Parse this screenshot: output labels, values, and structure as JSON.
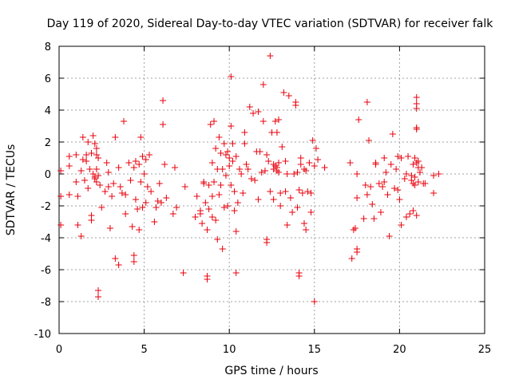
{
  "chart_data": {
    "type": "scatter",
    "title": "Day 119 of 2020, Sidereal Day-to-day VTEC variation (SDTVAR) for receiver falk",
    "xlabel": "GPS time / hours",
    "ylabel": "SDTVAR / TECUs",
    "xlim": [
      0,
      25
    ],
    "ylim": [
      -10,
      8
    ],
    "x_ticks": [
      0,
      5,
      10,
      15,
      20,
      25
    ],
    "y_ticks": [
      -10,
      -8,
      -6,
      -4,
      -2,
      0,
      2,
      4,
      6,
      8
    ],
    "x_tick_labels": [
      "0",
      "5",
      "10",
      "15",
      "20",
      "25"
    ],
    "y_tick_labels": [
      "-10",
      "-8",
      "-6",
      "-4",
      "-2",
      "0",
      "2",
      "4",
      "6",
      "8"
    ],
    "grid": true,
    "marker": "+",
    "marker_color": "#e8000b",
    "series": [
      {
        "name": "SDTVAR",
        "points": [
          [
            0.1,
            0.2
          ],
          [
            0.1,
            -1.4
          ],
          [
            0.1,
            -3.2
          ],
          [
            0.6,
            0.5
          ],
          [
            0.6,
            -1.3
          ],
          [
            0.6,
            1.1
          ],
          [
            1.0,
            1.2
          ],
          [
            1.0,
            -0.5
          ],
          [
            1.1,
            -3.2
          ],
          [
            1.1,
            -1.4
          ],
          [
            1.3,
            0.2
          ],
          [
            1.3,
            -3.9
          ],
          [
            1.4,
            2.3
          ],
          [
            1.4,
            0.9
          ],
          [
            1.5,
            -0.4
          ],
          [
            1.6,
            0.8
          ],
          [
            1.6,
            1.2
          ],
          [
            1.7,
            2.0
          ],
          [
            1.7,
            -0.9
          ],
          [
            1.8,
            0.3
          ],
          [
            1.9,
            1.3
          ],
          [
            1.9,
            -2.6
          ],
          [
            1.9,
            -2.9
          ],
          [
            2.0,
            2.4
          ],
          [
            2.0,
            0.0
          ],
          [
            2.1,
            1.9
          ],
          [
            2.1,
            -0.2
          ],
          [
            2.1,
            -0.3
          ],
          [
            2.2,
            1.6
          ],
          [
            2.2,
            1.2
          ],
          [
            2.2,
            -0.5
          ],
          [
            2.2,
            0.3
          ],
          [
            2.3,
            -7.3
          ],
          [
            2.3,
            -7.7
          ],
          [
            2.3,
            1.0
          ],
          [
            2.3,
            -0.1
          ],
          [
            2.4,
            -0.7
          ],
          [
            2.5,
            -2.1
          ],
          [
            2.7,
            -1.1
          ],
          [
            2.8,
            0.7
          ],
          [
            2.9,
            0.1
          ],
          [
            2.9,
            -0.8
          ],
          [
            3.0,
            -3.4
          ],
          [
            3.1,
            -1.4
          ],
          [
            3.2,
            -0.6
          ],
          [
            3.3,
            -5.3
          ],
          [
            3.3,
            2.3
          ],
          [
            3.5,
            -5.7
          ],
          [
            3.5,
            0.4
          ],
          [
            3.6,
            -0.8
          ],
          [
            3.7,
            -1.2
          ],
          [
            3.8,
            3.3
          ],
          [
            3.9,
            -2.5
          ],
          [
            3.9,
            -1.3
          ],
          [
            4.1,
            0.7
          ],
          [
            4.2,
            -0.4
          ],
          [
            4.3,
            -3.3
          ],
          [
            4.4,
            -5.1
          ],
          [
            4.4,
            -5.5
          ],
          [
            4.4,
            0.4
          ],
          [
            4.5,
            0.8
          ],
          [
            4.5,
            -1.6
          ],
          [
            4.6,
            -2.2
          ],
          [
            4.7,
            -3.5
          ],
          [
            4.7,
            0.6
          ],
          [
            4.8,
            2.3
          ],
          [
            4.8,
            -0.5
          ],
          [
            4.9,
            -2.1
          ],
          [
            4.9,
            1.1
          ],
          [
            5.0,
            0.0
          ],
          [
            5.1,
            -1.8
          ],
          [
            5.1,
            0.9
          ],
          [
            5.2,
            -0.8
          ],
          [
            5.3,
            1.2
          ],
          [
            5.4,
            -1.1
          ],
          [
            5.6,
            -3.0
          ],
          [
            5.7,
            -2.1
          ],
          [
            5.8,
            -1.7
          ],
          [
            5.9,
            -0.6
          ],
          [
            6.0,
            -1.8
          ],
          [
            6.1,
            4.6
          ],
          [
            6.1,
            3.1
          ],
          [
            6.2,
            0.6
          ],
          [
            6.3,
            -1.5
          ],
          [
            6.7,
            -2.5
          ],
          [
            6.8,
            0.4
          ],
          [
            6.9,
            -2.1
          ],
          [
            7.3,
            -6.2
          ],
          [
            7.4,
            -0.8
          ],
          [
            8.0,
            -2.7
          ],
          [
            8.1,
            -1.4
          ],
          [
            8.3,
            -2.5
          ],
          [
            8.3,
            -2.3
          ],
          [
            8.4,
            -3.1
          ],
          [
            8.5,
            -0.5
          ],
          [
            8.5,
            -0.6
          ],
          [
            8.6,
            -1.8
          ],
          [
            8.7,
            -6.4
          ],
          [
            8.7,
            -6.6
          ],
          [
            8.7,
            -3.5
          ],
          [
            8.8,
            -2.2
          ],
          [
            8.8,
            -0.7
          ],
          [
            8.9,
            3.1
          ],
          [
            9.0,
            -2.7
          ],
          [
            9.0,
            0.7
          ],
          [
            9.0,
            -1.4
          ],
          [
            9.1,
            -0.5
          ],
          [
            9.1,
            3.3
          ],
          [
            9.2,
            -2.9
          ],
          [
            9.2,
            1.6
          ],
          [
            9.3,
            -4.1
          ],
          [
            9.3,
            0.3
          ],
          [
            9.4,
            2.3
          ],
          [
            9.4,
            -1.3
          ],
          [
            9.5,
            1.3
          ],
          [
            9.5,
            -0.7
          ],
          [
            9.6,
            -4.7
          ],
          [
            9.6,
            0.3
          ],
          [
            9.7,
            1.9
          ],
          [
            9.7,
            -2.1
          ],
          [
            9.8,
            1.2
          ],
          [
            9.8,
            -0.1
          ],
          [
            9.9,
            -2.0
          ],
          [
            9.9,
            1.4
          ],
          [
            10.0,
            1.0
          ],
          [
            10.0,
            0.5
          ],
          [
            10.1,
            6.1
          ],
          [
            10.1,
            3.0
          ],
          [
            10.1,
            -0.7
          ],
          [
            10.2,
            1.9
          ],
          [
            10.2,
            0.8
          ],
          [
            10.3,
            -1.1
          ],
          [
            10.3,
            -2.3
          ],
          [
            10.4,
            -6.2
          ],
          [
            10.4,
            -3.6
          ],
          [
            10.4,
            1.1
          ],
          [
            10.5,
            -1.8
          ],
          [
            10.6,
            0.3
          ],
          [
            10.7,
            0.0
          ],
          [
            10.8,
            -1.2
          ],
          [
            10.9,
            1.9
          ],
          [
            10.9,
            2.6
          ],
          [
            11.0,
            0.6
          ],
          [
            11.1,
            0.3
          ],
          [
            11.2,
            4.2
          ],
          [
            11.3,
            -0.3
          ],
          [
            11.4,
            3.8
          ],
          [
            11.5,
            -0.4
          ],
          [
            11.6,
            1.4
          ],
          [
            11.7,
            -1.6
          ],
          [
            11.7,
            3.9
          ],
          [
            11.8,
            1.4
          ],
          [
            11.9,
            0.1
          ],
          [
            12.0,
            5.6
          ],
          [
            12.0,
            3.3
          ],
          [
            12.1,
            0.2
          ],
          [
            12.2,
            -4.3
          ],
          [
            12.2,
            -4.1
          ],
          [
            12.2,
            1.2
          ],
          [
            12.3,
            0.8
          ],
          [
            12.4,
            7.4
          ],
          [
            12.4,
            -1.1
          ],
          [
            12.5,
            2.6
          ],
          [
            12.6,
            0.6
          ],
          [
            12.6,
            -1.6
          ],
          [
            12.6,
            0.3
          ],
          [
            12.7,
            3.3
          ],
          [
            12.7,
            0.5
          ],
          [
            12.8,
            0.2
          ],
          [
            12.8,
            0.4
          ],
          [
            12.8,
            2.6
          ],
          [
            12.9,
            3.4
          ],
          [
            12.9,
            0.1
          ],
          [
            12.9,
            0.7
          ],
          [
            13.0,
            -2.0
          ],
          [
            13.0,
            -1.2
          ],
          [
            13.1,
            1.7
          ],
          [
            13.2,
            5.1
          ],
          [
            13.3,
            0.8
          ],
          [
            13.3,
            -1.1
          ],
          [
            13.4,
            0.0
          ],
          [
            13.4,
            -3.2
          ],
          [
            13.5,
            4.9
          ],
          [
            13.6,
            -1.5
          ],
          [
            13.7,
            -2.4
          ],
          [
            13.8,
            0.0
          ],
          [
            13.9,
            4.5
          ],
          [
            13.9,
            4.3
          ],
          [
            14.0,
            -2.1
          ],
          [
            14.0,
            0.1
          ],
          [
            14.1,
            -1.0
          ],
          [
            14.1,
            -6.2
          ],
          [
            14.1,
            -6.4
          ],
          [
            14.2,
            0.6
          ],
          [
            14.2,
            1.0
          ],
          [
            14.3,
            -1.2
          ],
          [
            14.4,
            -3.1
          ],
          [
            14.4,
            0.3
          ],
          [
            14.5,
            -3.5
          ],
          [
            14.5,
            0.2
          ],
          [
            14.6,
            -1.1
          ],
          [
            14.7,
            0.7
          ],
          [
            14.8,
            -2.4
          ],
          [
            14.8,
            -1.2
          ],
          [
            14.9,
            2.1
          ],
          [
            15.0,
            -8.0
          ],
          [
            15.0,
            0.5
          ],
          [
            15.1,
            1.6
          ],
          [
            15.2,
            0.9
          ],
          [
            15.6,
            0.4
          ],
          [
            17.1,
            0.7
          ],
          [
            17.2,
            -5.3
          ],
          [
            17.3,
            -3.5
          ],
          [
            17.4,
            -3.4
          ],
          [
            17.5,
            -4.9
          ],
          [
            17.5,
            -4.7
          ],
          [
            17.5,
            -1.5
          ],
          [
            17.5,
            0.0
          ],
          [
            17.6,
            3.4
          ],
          [
            17.9,
            -2.8
          ],
          [
            18.0,
            -0.7
          ],
          [
            18.1,
            -1.3
          ],
          [
            18.1,
            4.5
          ],
          [
            18.2,
            2.1
          ],
          [
            18.3,
            -0.8
          ],
          [
            18.4,
            -1.9
          ],
          [
            18.5,
            -2.8
          ],
          [
            18.6,
            0.6
          ],
          [
            18.6,
            0.7
          ],
          [
            18.8,
            -0.6
          ],
          [
            18.9,
            -2.4
          ],
          [
            19.0,
            -0.8
          ],
          [
            19.1,
            -0.5
          ],
          [
            19.1,
            1.0
          ],
          [
            19.2,
            0.1
          ],
          [
            19.3,
            -1.3
          ],
          [
            19.4,
            -3.9
          ],
          [
            19.5,
            0.6
          ],
          [
            19.6,
            2.5
          ],
          [
            19.7,
            -0.9
          ],
          [
            19.8,
            0.3
          ],
          [
            19.9,
            -1.0
          ],
          [
            19.9,
            1.1
          ],
          [
            20.0,
            -1.6
          ],
          [
            20.1,
            -3.2
          ],
          [
            20.1,
            1.0
          ],
          [
            20.3,
            -0.3
          ],
          [
            20.4,
            0.0
          ],
          [
            20.4,
            -2.7
          ],
          [
            20.5,
            1.1
          ],
          [
            20.6,
            -2.5
          ],
          [
            20.7,
            -0.4
          ],
          [
            20.7,
            -0.1
          ],
          [
            20.8,
            -0.6
          ],
          [
            20.8,
            0.6
          ],
          [
            20.8,
            -2.3
          ],
          [
            20.9,
            1.0
          ],
          [
            20.9,
            -0.2
          ],
          [
            20.9,
            -0.7
          ],
          [
            21.0,
            4.8
          ],
          [
            21.0,
            4.4
          ],
          [
            21.0,
            4.1
          ],
          [
            21.0,
            2.9
          ],
          [
            21.0,
            2.8
          ],
          [
            21.0,
            0.7
          ],
          [
            21.0,
            -2.6
          ],
          [
            21.1,
            0.8
          ],
          [
            21.1,
            0.4
          ],
          [
            21.1,
            -0.5
          ],
          [
            21.2,
            0.1
          ],
          [
            21.3,
            0.4
          ],
          [
            21.4,
            -0.6
          ],
          [
            21.5,
            -0.6
          ],
          [
            22.0,
            -1.2
          ],
          [
            22.0,
            -0.1
          ],
          [
            22.3,
            0.0
          ]
        ]
      }
    ]
  }
}
